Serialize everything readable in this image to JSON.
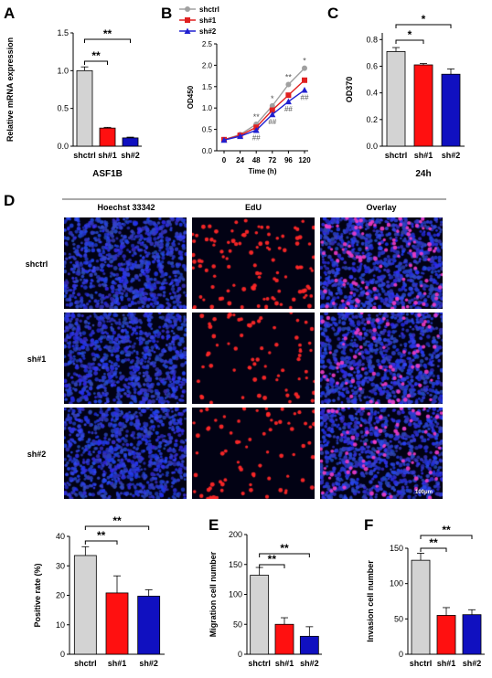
{
  "colors": {
    "ctrl": "#d3d3d3",
    "sh1": "#ff1010",
    "sh2": "#1010c0",
    "line_ctrl": "#a0a0a0",
    "line_sh1": "#e02020",
    "line_sh2": "#2020d0"
  },
  "panel_letters": {
    "A": "A",
    "B": "B",
    "C": "C",
    "D": "D",
    "E": "E",
    "F": "F"
  },
  "panel_d": {
    "columns": [
      "Hoechst 33342",
      "EdU",
      "Overlay"
    ],
    "rows": [
      "shctrl",
      "sh#1",
      "sh#2"
    ],
    "scale_bar": "100μm"
  },
  "chart_data": [
    {
      "panel": "A",
      "type": "bar",
      "categories": [
        "shctrl",
        "sh#1",
        "sh#2"
      ],
      "values": [
        1.0,
        0.24,
        0.11
      ],
      "errors": [
        0.05,
        0.01,
        0.01
      ],
      "ylabel": "Relative mRNA expression",
      "xlabel": "ASF1B",
      "ylim": [
        0,
        1.5
      ],
      "yticks": [
        "0.0",
        "0.5",
        "1.0",
        "1.5"
      ],
      "significance": [
        {
          "pair": [
            0,
            1
          ],
          "label": "**"
        },
        {
          "pair": [
            0,
            2
          ],
          "label": "**"
        }
      ]
    },
    {
      "panel": "B",
      "type": "line",
      "x": [
        0,
        24,
        48,
        72,
        96,
        120
      ],
      "xticks": [
        "0",
        "24",
        "48",
        "72",
        "96",
        "120"
      ],
      "xlabel": "Time  (h)",
      "ylabel": "OD450",
      "ylim": [
        0,
        2.5
      ],
      "yticks": [
        "0.0",
        "0.5",
        "1.0",
        "1.5",
        "2.0",
        "2.5"
      ],
      "series": [
        {
          "name": "shctrl",
          "values": [
            0.26,
            0.38,
            0.62,
            1.05,
            1.55,
            1.93
          ]
        },
        {
          "name": "sh#1",
          "values": [
            0.26,
            0.36,
            0.55,
            0.95,
            1.3,
            1.65
          ]
        },
        {
          "name": "sh#2",
          "values": [
            0.25,
            0.34,
            0.48,
            0.85,
            1.15,
            1.42
          ]
        }
      ],
      "annotations": [
        {
          "x": 48,
          "top": "**",
          "bottom": "##"
        },
        {
          "x": 72,
          "top": "*",
          "bottom": "##"
        },
        {
          "x": 96,
          "top": "**",
          "bottom": "##"
        },
        {
          "x": 120,
          "top": "*",
          "bottom": "##"
        }
      ]
    },
    {
      "panel": "C",
      "type": "bar",
      "categories": [
        "shctrl",
        "sh#1",
        "sh#2"
      ],
      "values": [
        0.71,
        0.61,
        0.54
      ],
      "errors": [
        0.03,
        0.01,
        0.04
      ],
      "ylabel": "OD370",
      "xlabel": "24h",
      "ylim": [
        0,
        0.85
      ],
      "yticks": [
        "0.0",
        "0.2",
        "0.4",
        "0.6",
        "0.8"
      ],
      "significance": [
        {
          "pair": [
            0,
            1
          ],
          "label": "*"
        },
        {
          "pair": [
            0,
            2
          ],
          "label": "*"
        }
      ]
    },
    {
      "panel": "D",
      "type": "bar",
      "categories": [
        "shctrl",
        "sh#1",
        "sh#2"
      ],
      "values": [
        33.5,
        20.8,
        19.7
      ],
      "errors": [
        3.0,
        5.8,
        2.2
      ],
      "ylabel": "Positive rate (%)",
      "xlabel": "",
      "ylim": [
        0,
        40
      ],
      "yticks": [
        "0",
        "10",
        "20",
        "30",
        "40"
      ],
      "significance": [
        {
          "pair": [
            0,
            1
          ],
          "label": "**"
        },
        {
          "pair": [
            0,
            2
          ],
          "label": "**"
        }
      ]
    },
    {
      "panel": "E",
      "type": "bar",
      "categories": [
        "shctrl",
        "sh#1",
        "sh#2"
      ],
      "values": [
        132,
        50,
        30
      ],
      "errors": [
        13,
        11,
        16
      ],
      "ylabel": "Migration cell number",
      "xlabel": "",
      "ylim": [
        0,
        200
      ],
      "yticks": [
        "0",
        "50",
        "100",
        "150",
        "200"
      ],
      "significance": [
        {
          "pair": [
            0,
            1
          ],
          "label": "**"
        },
        {
          "pair": [
            0,
            2
          ],
          "label": "**"
        }
      ]
    },
    {
      "panel": "F",
      "type": "bar",
      "categories": [
        "shctrl",
        "sh#1",
        "sh#2"
      ],
      "values": [
        133,
        55,
        56
      ],
      "errors": [
        10,
        11,
        7
      ],
      "ylabel": "Invasion cell number",
      "xlabel": "",
      "ylim": [
        0,
        150
      ],
      "yticks": [
        "0",
        "50",
        "100",
        "150"
      ],
      "significance": [
        {
          "pair": [
            0,
            1
          ],
          "label": "**"
        },
        {
          "pair": [
            0,
            2
          ],
          "label": "**"
        }
      ]
    }
  ]
}
